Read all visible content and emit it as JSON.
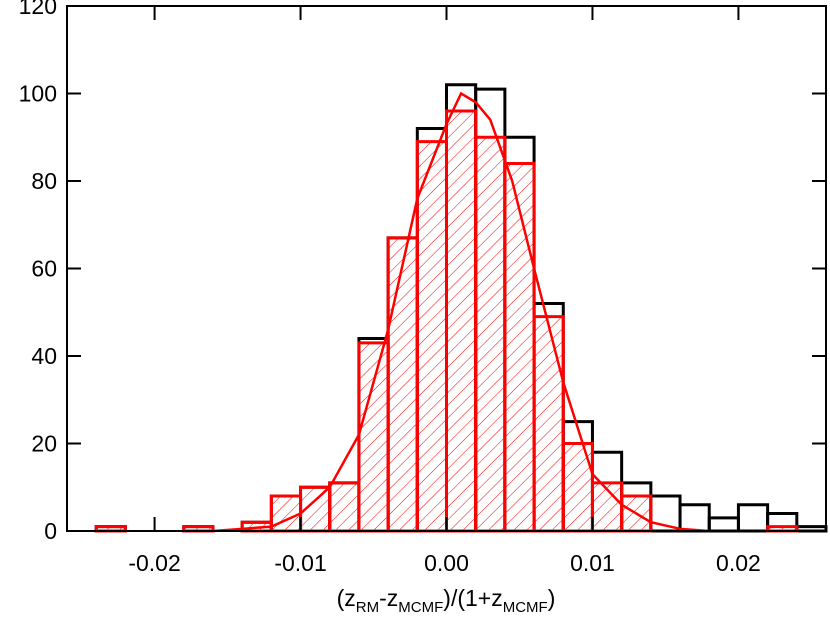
{
  "chart_data": {
    "type": "histogram",
    "xlabel_parts": [
      "(z",
      "RM",
      "-z",
      "MCMF",
      ")/(1+z",
      "MCMF",
      ")"
    ],
    "bins": [
      -0.026,
      -0.024,
      -0.022,
      -0.02,
      -0.018,
      -0.016,
      -0.014,
      -0.012,
      -0.01,
      -0.008,
      -0.006,
      -0.004,
      -0.002,
      0,
      0.002,
      0.004,
      0.006,
      0.008,
      0.01,
      0.012,
      0.014,
      0.016,
      0.018,
      0.02,
      0.022,
      0.024,
      0.026
    ],
    "series": [
      {
        "color": "#000000",
        "hatch": false,
        "values": [
          0,
          1,
          0,
          0,
          1,
          0,
          2,
          8,
          10,
          11,
          44,
          67,
          92,
          102,
          101,
          90,
          52,
          25,
          18,
          11,
          8,
          6,
          3,
          6,
          4,
          1
        ]
      },
      {
        "color": "#ff0000",
        "hatch": true,
        "values": [
          0,
          1,
          0,
          0,
          1,
          0,
          2,
          8,
          10,
          11,
          43,
          67,
          89,
          96,
          90,
          84,
          49,
          20,
          11,
          8,
          0,
          0,
          0,
          0,
          1,
          0
        ]
      }
    ],
    "curve": {
      "color": "#ff0000",
      "x": [
        -0.016,
        -0.014,
        -0.012,
        -0.01,
        -0.008,
        -0.006,
        -0.004,
        -0.002,
        0,
        0.001,
        0.002,
        0.003,
        0.0045,
        0.006,
        0.008,
        0.01,
        0.012,
        0.014,
        0.016,
        0.018
      ],
      "values": [
        0,
        0.5,
        1,
        4,
        10,
        22,
        46,
        76,
        93,
        100,
        98,
        94,
        80,
        60,
        34,
        13,
        6,
        2,
        0.5,
        0
      ]
    },
    "xlim": [
      -0.026,
      0.026
    ],
    "ylim": [
      0,
      120
    ],
    "xticks": [
      -0.02,
      -0.01,
      {
        "value": 0,
        "label": "0.00"
      },
      0.01,
      0.02
    ],
    "yticks": [
      0,
      20,
      40,
      60,
      80,
      100,
      120
    ]
  }
}
